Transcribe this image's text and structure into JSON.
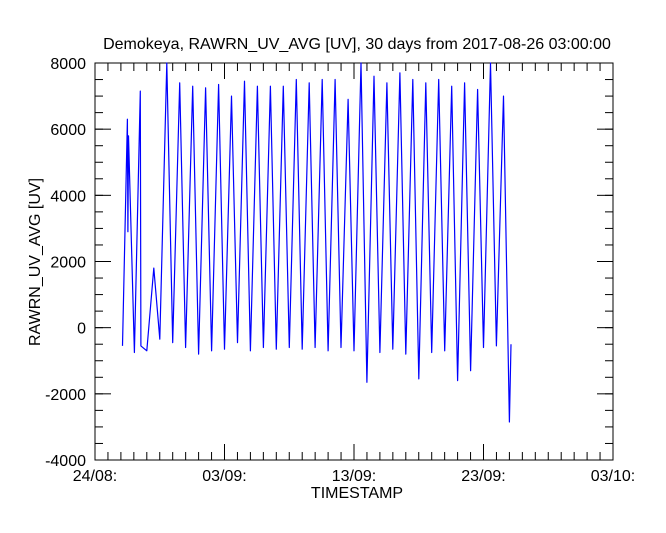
{
  "chart_data": {
    "type": "line",
    "title": "Demokeya, RAWRN_UV_AVG [UV], 30 days from  2017-08-26 03:00:00",
    "xlabel": "TIMESTAMP",
    "ylabel": "RAWRN_UV_AVG [UV]",
    "xlim": [
      "2017-08-24",
      "2017-10-03"
    ],
    "ylim": [
      -4000,
      8000
    ],
    "x_ticks": [
      {
        "x": "2017-08-24",
        "label": "24/08:"
      },
      {
        "x": "2017-09-03",
        "label": "03/09:"
      },
      {
        "x": "2017-09-13",
        "label": "13/09:"
      },
      {
        "x": "2017-09-23",
        "label": "23/09:"
      },
      {
        "x": "2017-10-03",
        "label": "03/10:"
      }
    ],
    "y_ticks": [
      -4000,
      -2000,
      0,
      2000,
      4000,
      6000,
      8000
    ],
    "color": "#0000ff",
    "series": [
      {
        "x": [
          "2017-08-26 03:00",
          "2017-08-26 12:00",
          "2017-08-26 13:00",
          "2017-08-26 14:00",
          "2017-08-27 01:00",
          "2017-08-27 12:00",
          "2017-08-27 13:00",
          "2017-08-28 00:00",
          "2017-08-28 13:00",
          "2017-08-29 00:00",
          "2017-08-29 13:00",
          "2017-08-30 00:00",
          "2017-08-30 13:00",
          "2017-08-31 00:00",
          "2017-08-31 13:00",
          "2017-09-01 00:00",
          "2017-09-01 13:00",
          "2017-09-02 00:00",
          "2017-09-02 13:00",
          "2017-09-03 00:00",
          "2017-09-03 13:00",
          "2017-09-04 00:00",
          "2017-09-04 13:00",
          "2017-09-05 00:00",
          "2017-09-05 13:00",
          "2017-09-06 00:00",
          "2017-09-06 13:00",
          "2017-09-07 00:00",
          "2017-09-07 13:00",
          "2017-09-08 00:00",
          "2017-09-08 13:00",
          "2017-09-09 00:00",
          "2017-09-09 13:00",
          "2017-09-10 00:00",
          "2017-09-10 13:00",
          "2017-09-11 00:00",
          "2017-09-11 13:00",
          "2017-09-12 00:00",
          "2017-09-12 13:00",
          "2017-09-13 00:00",
          "2017-09-13 13:00",
          "2017-09-14 00:00",
          "2017-09-14 13:00",
          "2017-09-15 00:00",
          "2017-09-15 13:00",
          "2017-09-16 00:00",
          "2017-09-16 13:00",
          "2017-09-17 00:00",
          "2017-09-17 13:00",
          "2017-09-18 00:00",
          "2017-09-18 13:00",
          "2017-09-19 00:00",
          "2017-09-19 13:00",
          "2017-09-20 00:00",
          "2017-09-20 13:00",
          "2017-09-21 00:00",
          "2017-09-21 13:00",
          "2017-09-22 00:00",
          "2017-09-22 13:00",
          "2017-09-23 00:00",
          "2017-09-23 13:00",
          "2017-09-24 00:00",
          "2017-09-24 13:00",
          "2017-09-25 00:00",
          "2017-09-25 03:00"
        ],
        "y": [
          -550,
          6300,
          2900,
          5800,
          -750,
          7150,
          -550,
          -700,
          1800,
          -350,
          8000,
          -450,
          7400,
          -600,
          7300,
          -800,
          7250,
          -700,
          7350,
          -650,
          7000,
          -450,
          7450,
          -700,
          7300,
          -600,
          7300,
          -650,
          7300,
          -600,
          7500,
          -650,
          7400,
          -600,
          7500,
          -700,
          7500,
          -600,
          6900,
          -700,
          8000,
          -1650,
          7600,
          -750,
          7400,
          -650,
          7700,
          -800,
          7500,
          -1550,
          7400,
          -750,
          7500,
          -700,
          7300,
          -1600,
          7400,
          -1300,
          7200,
          -600,
          8000,
          -550,
          7000,
          -2850,
          -500
        ]
      }
    ]
  }
}
